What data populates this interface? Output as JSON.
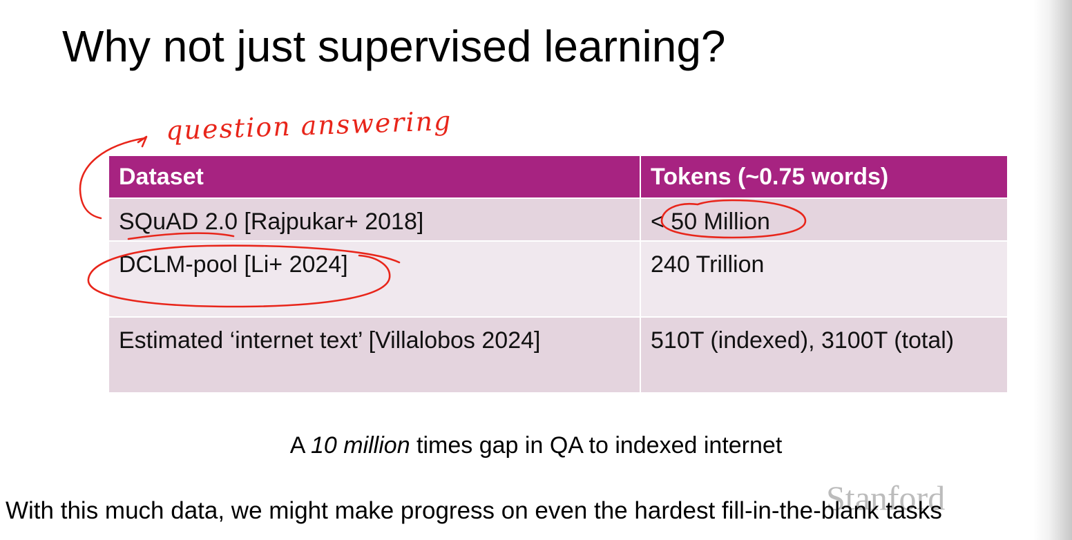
{
  "slide": {
    "title": "Why not just supervised learning?",
    "annotation": "question answering",
    "table": {
      "headers": [
        "Dataset",
        "Tokens (~0.75 words)"
      ],
      "rows": [
        [
          "SQuAD 2.0 [Rajpukar+ 2018]",
          "< 50 Million"
        ],
        [
          "DCLM-pool [Li+ 2024]",
          "240 Trillion"
        ],
        [
          "Estimated ‘internet text’ [Villalobos 2024]",
          "510T (indexed), 3100T (total)"
        ]
      ]
    },
    "caption": {
      "prefix": "A ",
      "emphasis": "10 million",
      "suffix": " times gap in QA to indexed internet"
    },
    "bottom_text": "With this much data, we might make progress on even the hardest fill-in-the-blank tasks",
    "watermark": "Stanford"
  },
  "colors": {
    "header_bg": "#a72381",
    "row_dark": "#e4d4de",
    "row_light": "#f0e8ee",
    "ink": "#e8251a"
  }
}
